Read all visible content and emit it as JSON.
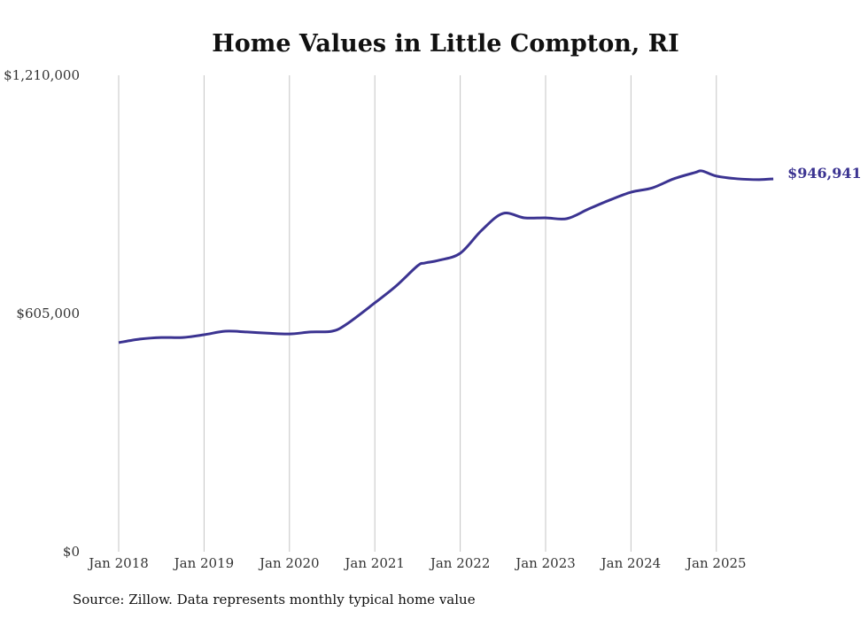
{
  "chart_data": {
    "type": "line",
    "title": "Home Values in Little Compton, RI",
    "xlabel": "",
    "ylabel": "",
    "ylim": [
      0,
      1210000
    ],
    "y_ticks": [
      0,
      605000,
      1210000
    ],
    "y_tick_labels": [
      "$0",
      "$605,000",
      "$1,210,000"
    ],
    "x_tick_labels": [
      "Jan 2018",
      "Jan 2019",
      "Jan 2020",
      "Jan 2021",
      "Jan 2022",
      "Jan 2023",
      "Jan 2024",
      "Jan 2025"
    ],
    "x_ticks": [
      2018,
      2019,
      2020,
      2021,
      2022,
      2023,
      2024,
      2025
    ],
    "xlim": [
      2018,
      2025.667
    ],
    "grid": "vertical",
    "line_color": "#3b3391",
    "end_label": "$946,941",
    "series": [
      {
        "name": "Typical home value",
        "x": [
          2018,
          2018.25,
          2018.5,
          2018.75,
          2019,
          2019.25,
          2019.5,
          2019.75,
          2020,
          2020.25,
          2020.5,
          2020.67,
          2021,
          2021.25,
          2021.5,
          2021.583,
          2021.75,
          2022,
          2022.25,
          2022.5,
          2022.75,
          2023,
          2023.25,
          2023.5,
          2023.75,
          2024,
          2024.25,
          2024.5,
          2024.75,
          2024.833,
          2025,
          2025.25,
          2025.5,
          2025.667
        ],
        "values": [
          531000,
          540000,
          544000,
          544000,
          551000,
          560000,
          558000,
          555000,
          553000,
          558000,
          560000,
          578000,
          632000,
          675000,
          726000,
          733000,
          740000,
          758000,
          816000,
          859000,
          848000,
          848000,
          846000,
          870000,
          893000,
          913000,
          924000,
          947000,
          963000,
          967000,
          954000,
          947000,
          945000,
          946941
        ]
      }
    ]
  },
  "source": "Source: Zillow. Data represents monthly typical home value"
}
